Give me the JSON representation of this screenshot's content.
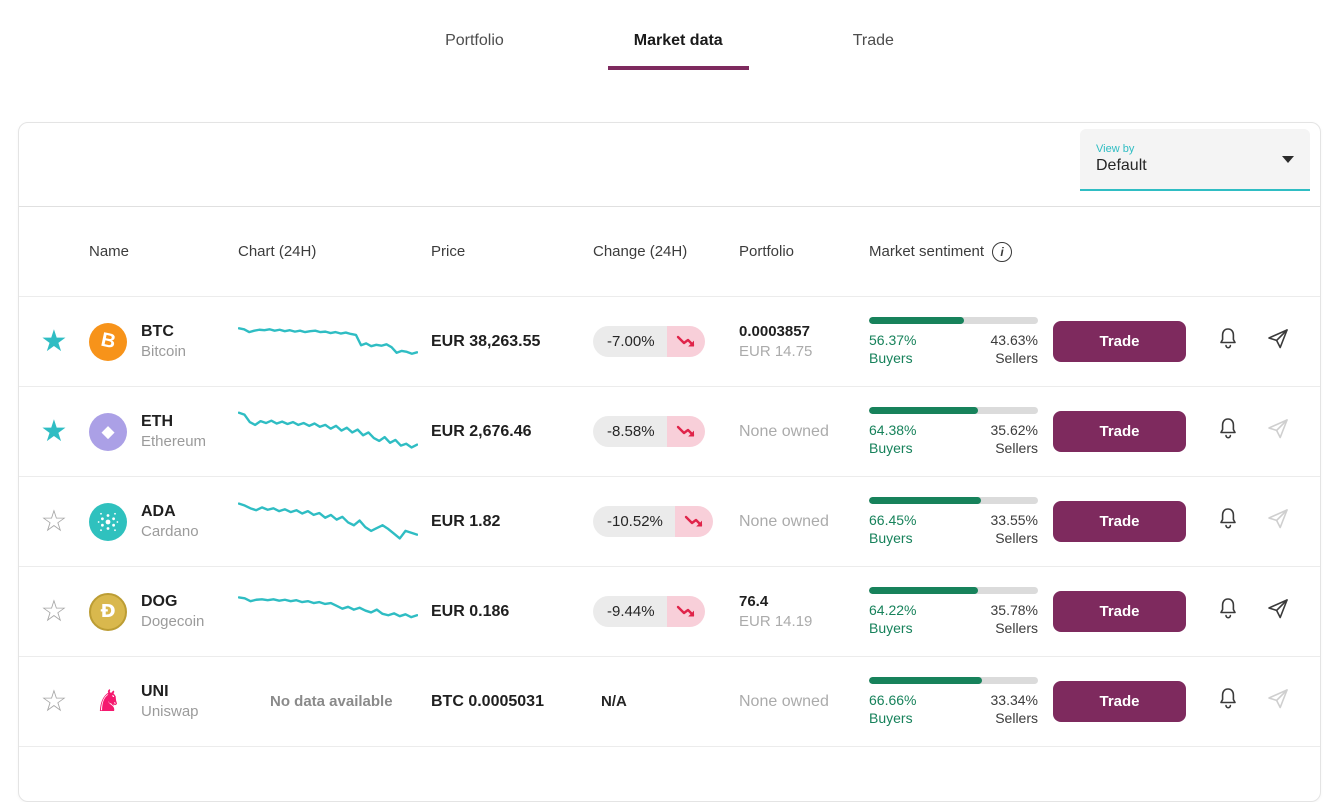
{
  "tabs": [
    {
      "label": "Portfolio",
      "active": false
    },
    {
      "label": "Market data",
      "active": true
    },
    {
      "label": "Trade",
      "active": false
    }
  ],
  "view_by": {
    "label": "View by",
    "value": "Default"
  },
  "colors": {
    "accent_teal": "#2FBDC3",
    "brand_magenta": "#7E2A5E",
    "sentiment_green": "#17825B",
    "negative_red": "#E0244A",
    "negative_pink_bg": "#F8CFD9"
  },
  "table": {
    "headers": {
      "name": "Name",
      "chart": "Chart (24H)",
      "price": "Price",
      "change": "Change (24H)",
      "portfolio": "Portfolio",
      "sentiment": "Market sentiment"
    },
    "trade_label": "Trade",
    "buyers_label": "Buyers",
    "sellers_label": "Sellers",
    "no_data_label": "No data available",
    "rows": [
      {
        "symbol": "BTC",
        "name": "Bitcoin",
        "favorite": true,
        "price": "EUR 38,263.55",
        "change": "-7.00%",
        "portfolio": {
          "amount": "0.0003857",
          "value": "EUR 14.75"
        },
        "buyers_pct": "56.37%",
        "sellers_pct": "43.63%",
        "buyers_value": 56.37,
        "spark": [
          22,
          24,
          30,
          27,
          25,
          26,
          24,
          27,
          25,
          28,
          26,
          29,
          27,
          30,
          28,
          27,
          30,
          29,
          32,
          30,
          33,
          31,
          34,
          36,
          58,
          54,
          60,
          57,
          59,
          56,
          62,
          74,
          70,
          72,
          76,
          73
        ]
      },
      {
        "symbol": "ETH",
        "name": "Ethereum",
        "favorite": true,
        "price": "EUR 2,676.46",
        "change": "-8.58%",
        "portfolio": {
          "none": "None owned"
        },
        "buyers_pct": "64.38%",
        "sellers_pct": "35.62%",
        "buyers_value": 64.38,
        "spark": [
          10,
          14,
          30,
          36,
          28,
          32,
          27,
          33,
          29,
          34,
          30,
          36,
          32,
          38,
          33,
          40,
          36,
          44,
          38,
          48,
          42,
          52,
          46,
          58,
          52,
          64,
          70,
          62,
          74,
          68,
          80,
          76,
          84,
          78
        ]
      },
      {
        "symbol": "ADA",
        "name": "Cardano",
        "favorite": false,
        "price": "EUR 1.82",
        "change": "-10.52%",
        "portfolio": {
          "none": "None owned"
        },
        "buyers_pct": "66.45%",
        "sellers_pct": "33.55%",
        "buyers_value": 66.45,
        "spark": [
          12,
          16,
          22,
          26,
          20,
          25,
          22,
          28,
          24,
          30,
          26,
          33,
          28,
          36,
          32,
          42,
          36,
          46,
          40,
          52,
          58,
          48,
          62,
          70,
          64,
          58,
          66,
          76,
          86,
          70,
          74,
          78
        ]
      },
      {
        "symbol": "DOG",
        "name": "Dogecoin",
        "favorite": false,
        "price": "EUR 0.186",
        "change": "-9.44%",
        "portfolio": {
          "amount": "76.4",
          "value": "EUR 14.19"
        },
        "buyers_pct": "64.22%",
        "sellers_pct": "35.78%",
        "buyers_value": 64.22,
        "spark": [
          20,
          22,
          28,
          25,
          24,
          26,
          24,
          27,
          25,
          28,
          26,
          30,
          28,
          32,
          30,
          34,
          32,
          38,
          44,
          40,
          46,
          42,
          48,
          52,
          46,
          55,
          58,
          54,
          60,
          56,
          62,
          58
        ]
      },
      {
        "symbol": "UNI",
        "name": "Uniswap",
        "favorite": false,
        "price": "BTC 0.0005031",
        "change": "N/A",
        "portfolio": {
          "none": "None owned"
        },
        "buyers_pct": "66.66%",
        "sellers_pct": "33.34%",
        "buyers_value": 66.66,
        "spark": null
      }
    ]
  }
}
